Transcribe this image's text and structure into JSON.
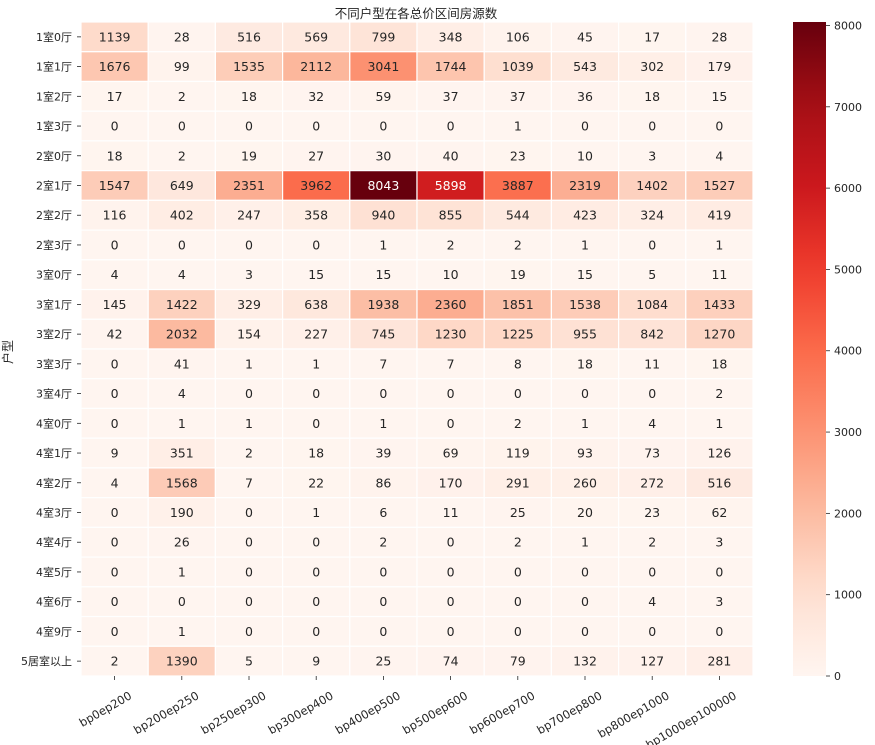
{
  "chart_data": {
    "type": "heatmap",
    "title": "不同户型在各总价区间房源数",
    "xlabel": "",
    "ylabel": "户型",
    "columns": [
      "bp0ep200",
      "bp200ep250",
      "bp250ep300",
      "bp300ep400",
      "bp400ep500",
      "bp500ep600",
      "bp600ep700",
      "bp700ep800",
      "bp800ep1000",
      "bp1000ep100000"
    ],
    "rows": [
      "1室0厅",
      "1室1厅",
      "1室2厅",
      "1室3厅",
      "2室0厅",
      "2室1厅",
      "2室2厅",
      "2室3厅",
      "3室0厅",
      "3室1厅",
      "3室2厅",
      "3室3厅",
      "3室4厅",
      "4室0厅",
      "4室1厅",
      "4室2厅",
      "4室3厅",
      "4室4厅",
      "4室5厅",
      "4室6厅",
      "4室9厅",
      "5居室以上"
    ],
    "values": [
      [
        1139,
        28,
        516,
        569,
        799,
        348,
        106,
        45,
        17,
        28
      ],
      [
        1676,
        99,
        1535,
        2112,
        3041,
        1744,
        1039,
        543,
        302,
        179
      ],
      [
        17,
        2,
        18,
        32,
        59,
        37,
        37,
        36,
        18,
        15
      ],
      [
        0,
        0,
        0,
        0,
        0,
        0,
        1,
        0,
        0,
        0
      ],
      [
        18,
        2,
        19,
        27,
        30,
        40,
        23,
        10,
        3,
        4
      ],
      [
        1547,
        649,
        2351,
        3962,
        8043,
        5898,
        3887,
        2319,
        1402,
        1527
      ],
      [
        116,
        402,
        247,
        358,
        940,
        855,
        544,
        423,
        324,
        419
      ],
      [
        0,
        0,
        0,
        0,
        1,
        2,
        2,
        1,
        0,
        1
      ],
      [
        4,
        4,
        3,
        15,
        15,
        10,
        19,
        15,
        5,
        11
      ],
      [
        145,
        1422,
        329,
        638,
        1938,
        2360,
        1851,
        1538,
        1084,
        1433
      ],
      [
        42,
        2032,
        154,
        227,
        745,
        1230,
        1225,
        955,
        842,
        1270
      ],
      [
        0,
        41,
        1,
        1,
        7,
        7,
        8,
        18,
        11,
        18
      ],
      [
        0,
        4,
        0,
        0,
        0,
        0,
        0,
        0,
        0,
        2
      ],
      [
        0,
        1,
        1,
        0,
        1,
        0,
        2,
        1,
        4,
        1
      ],
      [
        9,
        351,
        2,
        18,
        39,
        69,
        119,
        93,
        73,
        126
      ],
      [
        4,
        1568,
        7,
        22,
        86,
        170,
        291,
        260,
        272,
        516
      ],
      [
        0,
        190,
        0,
        1,
        6,
        11,
        25,
        20,
        23,
        62
      ],
      [
        0,
        26,
        0,
        0,
        2,
        0,
        2,
        1,
        2,
        3
      ],
      [
        0,
        1,
        0,
        0,
        0,
        0,
        0,
        0,
        0,
        0
      ],
      [
        0,
        0,
        0,
        0,
        0,
        0,
        0,
        0,
        4,
        3
      ],
      [
        0,
        1,
        0,
        0,
        0,
        0,
        0,
        0,
        0,
        0
      ],
      [
        2,
        1390,
        5,
        9,
        25,
        74,
        79,
        132,
        127,
        281
      ]
    ],
    "vmin": 0,
    "vmax": 8043,
    "colormap": "Reds",
    "colorbar_ticks": [
      0,
      1000,
      2000,
      3000,
      4000,
      5000,
      6000,
      7000,
      8000
    ],
    "annotations": true,
    "grid_lines": "white"
  }
}
